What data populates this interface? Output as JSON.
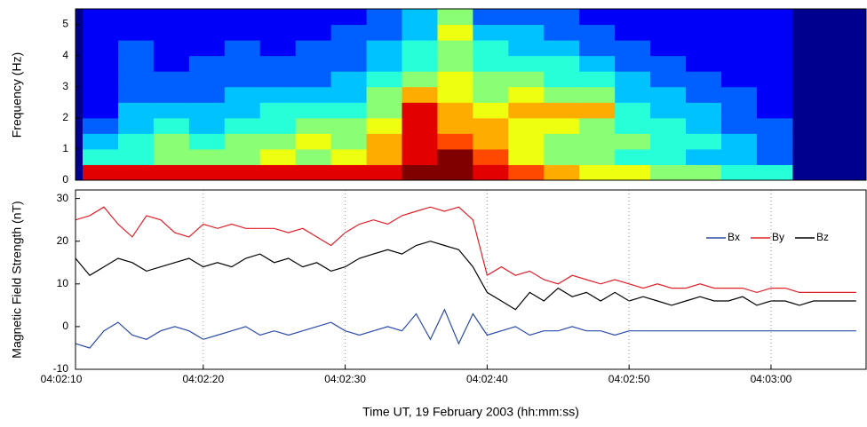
{
  "chart_data": [
    {
      "type": "heatmap",
      "ylabel": "Frequency (Hz)",
      "x": [
        11.5,
        14,
        16.5,
        19,
        21.5,
        24,
        26.5,
        29,
        31.5,
        34,
        36.5,
        39,
        41.5,
        44,
        46.5,
        49,
        51.5,
        54,
        56.5,
        59,
        61.5
      ],
      "y": [
        0,
        0.5,
        1,
        1.5,
        2,
        2.5,
        3,
        3.5,
        4,
        4.5,
        5,
        5.5
      ],
      "z": [
        [
          8,
          8,
          8,
          8,
          8,
          8,
          8,
          8,
          8,
          9,
          9,
          8,
          7,
          6,
          5,
          5,
          4,
          4,
          3,
          3
        ],
        [
          3,
          3,
          4,
          4,
          4,
          5,
          4,
          5,
          6,
          8,
          9,
          7,
          5,
          4,
          4,
          3,
          3,
          2,
          2,
          1
        ],
        [
          2,
          3,
          4,
          3,
          4,
          4,
          5,
          4,
          6,
          8,
          7,
          6,
          5,
          4,
          4,
          4,
          3,
          3,
          2,
          1
        ],
        [
          1,
          2,
          3,
          2,
          3,
          3,
          4,
          4,
          5,
          8,
          6,
          6,
          5,
          5,
          4,
          3,
          3,
          2,
          1,
          1
        ],
        [
          0,
          2,
          2,
          2,
          2,
          3,
          3,
          3,
          4,
          8,
          6,
          5,
          6,
          6,
          6,
          3,
          2,
          2,
          1,
          0
        ],
        [
          0,
          1,
          1,
          1,
          2,
          2,
          2,
          2,
          4,
          6,
          5,
          4,
          5,
          4,
          4,
          2,
          2,
          1,
          1,
          0
        ],
        [
          0,
          1,
          1,
          1,
          1,
          1,
          1,
          2,
          3,
          4,
          5,
          4,
          4,
          3,
          3,
          2,
          1,
          1,
          0,
          0
        ],
        [
          0,
          1,
          0,
          1,
          1,
          1,
          1,
          1,
          2,
          3,
          4,
          3,
          3,
          3,
          2,
          1,
          1,
          0,
          0,
          0
        ],
        [
          0,
          1,
          0,
          0,
          1,
          0,
          1,
          1,
          2,
          3,
          4,
          3,
          2,
          2,
          1,
          1,
          0,
          0,
          0,
          0
        ],
        [
          0,
          0,
          0,
          0,
          0,
          0,
          0,
          1,
          1,
          2,
          5,
          2,
          2,
          1,
          1,
          0,
          0,
          0,
          0,
          0
        ],
        [
          0,
          0,
          0,
          0,
          0,
          0,
          0,
          0,
          1,
          2,
          4,
          1,
          1,
          1,
          0,
          0,
          0,
          0,
          0,
          0
        ]
      ],
      "zlim": [
        0,
        9
      ],
      "xlim": [
        11,
        66.7
      ],
      "ylim": [
        0,
        5.5
      ],
      "yticks": [
        0,
        1,
        2,
        3,
        4,
        5
      ]
    },
    {
      "type": "line",
      "ylabel": "Magnetic Field Strength (nT)",
      "xlabel": "Time UT, 19 February 2003 (hh:mm:ss)",
      "x": [
        11,
        12,
        13,
        14,
        15,
        16,
        17,
        18,
        19,
        20,
        21,
        22,
        23,
        24,
        25,
        26,
        27,
        28,
        29,
        30,
        31,
        32,
        33,
        34,
        35,
        36,
        37,
        38,
        39,
        40,
        41,
        42,
        43,
        44,
        45,
        46,
        47,
        48,
        49,
        50,
        51,
        52,
        53,
        54,
        55,
        56,
        57,
        58,
        59,
        60,
        61,
        62,
        63,
        64,
        65,
        66
      ],
      "series": [
        {
          "name": "Bx",
          "color": "#2b4ba8",
          "values": [
            -4,
            -5,
            -1,
            1,
            -2,
            -3,
            -1,
            0,
            -1,
            -3,
            -2,
            -1,
            0,
            -2,
            -1,
            -2,
            -1,
            0,
            1,
            -1,
            -2,
            -1,
            0,
            -1,
            3,
            -3,
            4,
            -4,
            3,
            -2,
            -1,
            0,
            -2,
            -1,
            -1,
            0,
            -1,
            -1,
            -2,
            -1,
            -1,
            -1,
            -1,
            -1,
            -1,
            -1,
            -1,
            -1,
            -1,
            -1,
            -1,
            -1,
            -1,
            -1,
            -1,
            -1
          ]
        },
        {
          "name": "By",
          "color": "#e0202a",
          "values": [
            25,
            26,
            28,
            24,
            21,
            26,
            25,
            22,
            21,
            24,
            23,
            24,
            23,
            23,
            23,
            22,
            23,
            21,
            19,
            22,
            24,
            25,
            24,
            26,
            27,
            28,
            27,
            28,
            25,
            12,
            14,
            12,
            13,
            11,
            10,
            12,
            11,
            10,
            11,
            10,
            9,
            10,
            9,
            9,
            10,
            9,
            9,
            9,
            8,
            9,
            9,
            8,
            8,
            8,
            8,
            8
          ]
        },
        {
          "name": "Bz",
          "color": "#000000",
          "values": [
            16,
            12,
            14,
            16,
            15,
            13,
            14,
            15,
            16,
            14,
            15,
            14,
            16,
            17,
            15,
            16,
            14,
            15,
            13,
            14,
            16,
            17,
            18,
            17,
            19,
            20,
            19,
            18,
            14,
            8,
            6,
            4,
            8,
            6,
            9,
            7,
            8,
            6,
            8,
            6,
            7,
            6,
            5,
            6,
            7,
            6,
            6,
            7,
            5,
            6,
            6,
            5,
            6,
            6,
            6,
            6
          ]
        }
      ],
      "xlim": [
        11,
        66.7
      ],
      "ylim": [
        -10,
        32
      ],
      "xticks": [
        {
          "value": 10,
          "label": "04:02:10"
        },
        {
          "value": 20,
          "label": "04:02:20"
        },
        {
          "value": 30,
          "label": "04:02:30"
        },
        {
          "value": 40,
          "label": "04:02:40"
        },
        {
          "value": 50,
          "label": "04:02:50"
        },
        {
          "value": 60,
          "label": "04:03:00"
        }
      ],
      "yticks": [
        -10,
        0,
        10,
        20,
        30
      ],
      "grid": true
    }
  ]
}
